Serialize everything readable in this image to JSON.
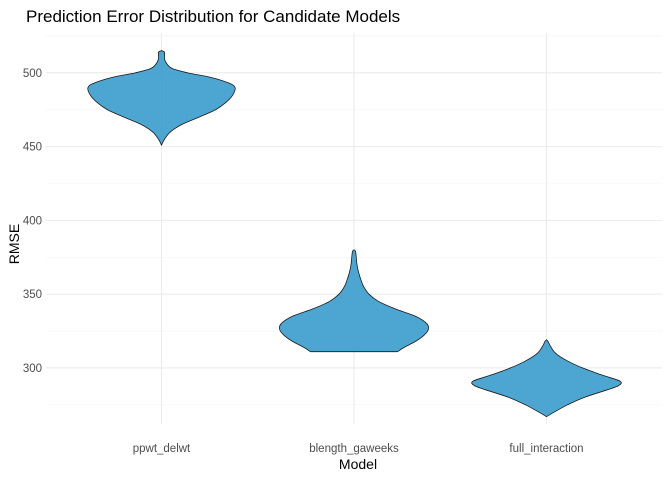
{
  "chart_data": {
    "type": "violin",
    "title": "Prediction Error Distribution for Candidate Models",
    "xlabel": "Model",
    "ylabel": "RMSE",
    "categories": [
      "ppwt_delwt",
      "blength_gaweeks",
      "full_interaction"
    ],
    "ylim": [
      262,
      527
    ],
    "yticks": [
      300,
      350,
      400,
      450,
      500
    ],
    "grid": true,
    "fill_color": "#3a9bcd",
    "outline_color": "#1a1a1a",
    "series": [
      {
        "category": "ppwt_delwt",
        "profile": [
          [
            451,
            0.0
          ],
          [
            455,
            0.04
          ],
          [
            460,
            0.12
          ],
          [
            465,
            0.27
          ],
          [
            470,
            0.5
          ],
          [
            475,
            0.72
          ],
          [
            480,
            0.86
          ],
          [
            485,
            0.95
          ],
          [
            490,
            0.98
          ],
          [
            493,
            0.9
          ],
          [
            497,
            0.65
          ],
          [
            500,
            0.35
          ],
          [
            503,
            0.14
          ],
          [
            507,
            0.06
          ],
          [
            510,
            0.04
          ],
          [
            514,
            0.04
          ],
          [
            515,
            0.0
          ]
        ]
      },
      {
        "category": "blength_gaweeks",
        "profile": [
          [
            311,
            0.58
          ],
          [
            314,
            0.67
          ],
          [
            318,
            0.82
          ],
          [
            322,
            0.93
          ],
          [
            326,
            0.99
          ],
          [
            330,
            0.97
          ],
          [
            335,
            0.82
          ],
          [
            340,
            0.55
          ],
          [
            345,
            0.33
          ],
          [
            350,
            0.2
          ],
          [
            355,
            0.13
          ],
          [
            360,
            0.09
          ],
          [
            365,
            0.06
          ],
          [
            370,
            0.04
          ],
          [
            375,
            0.03
          ],
          [
            379,
            0.02
          ],
          [
            380,
            0.0
          ]
        ]
      },
      {
        "category": "full_interaction",
        "profile": [
          [
            267,
            0.0
          ],
          [
            270,
            0.1
          ],
          [
            275,
            0.28
          ],
          [
            280,
            0.5
          ],
          [
            285,
            0.8
          ],
          [
            288,
            0.96
          ],
          [
            291,
            0.98
          ],
          [
            295,
            0.75
          ],
          [
            300,
            0.48
          ],
          [
            305,
            0.27
          ],
          [
            310,
            0.12
          ],
          [
            315,
            0.05
          ],
          [
            318,
            0.02
          ],
          [
            319,
            0.0
          ]
        ]
      }
    ]
  }
}
